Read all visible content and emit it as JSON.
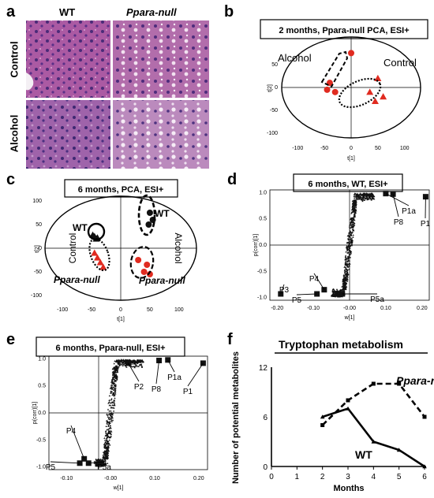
{
  "figure": {
    "panels": {
      "a": {
        "label": "a",
        "col_labels": [
          "WT",
          "Ppara-null"
        ],
        "row_labels": [
          "Control",
          "Alcohol"
        ],
        "images": [
          {
            "row": "Control",
            "col": "WT",
            "tint": "#a9549f"
          },
          {
            "row": "Control",
            "col": "Ppara-null",
            "tint": "#b06aa8"
          },
          {
            "row": "Alcohol",
            "col": "WT",
            "tint": "#9a5fa8"
          },
          {
            "row": "Alcohol",
            "col": "Ppara-null",
            "tint": "#b885b8"
          }
        ]
      },
      "b": {
        "label": "b",
        "title": "2 months, Ppara-null PCA, ESI+",
        "xlabel": "t[1]",
        "ylabel": "t[2]",
        "group_labels": [
          "Alcohol",
          "Control"
        ],
        "x_ticks": [
          "-100",
          "-50",
          "0",
          "50",
          "100"
        ],
        "y_ticks": [
          "50",
          "0",
          "-50",
          "-100"
        ]
      },
      "c": {
        "label": "c",
        "title": "6 months, PCA, ESI+",
        "xlabel": "t[1]",
        "ylabel": "t[2]",
        "group_labels": [
          "WT",
          "WT",
          "Control",
          "Alcohol",
          "Ppara-null",
          "Ppara-null"
        ],
        "x_ticks": [
          "-100",
          "-50",
          "0",
          "50",
          "100"
        ],
        "y_ticks": [
          "100",
          "50",
          "0",
          "-50",
          "-100"
        ]
      },
      "d": {
        "label": "d",
        "title": "6 months, WT, ESI+",
        "xlabel": "w[1]",
        "ylabel": "p(corr)[1]",
        "x_ticks": [
          "-0.20",
          "-0.10",
          "-0.00",
          "0.10",
          "0.20"
        ],
        "y_ticks": [
          "1.0",
          "0.5",
          "0.0",
          "-0.5",
          "-1.0"
        ],
        "marker_labels": [
          "P1a",
          "P8",
          "P1",
          "P4",
          "P3",
          "P5",
          "P5a"
        ]
      },
      "e": {
        "label": "e",
        "title": "6 months, Ppara-null, ESI+",
        "xlabel": "w[1]",
        "ylabel": "p(corr)[1]",
        "x_ticks": [
          "-0.10",
          "-0.00",
          "0.10",
          "0.20"
        ],
        "y_ticks": [
          "1.0",
          "0.5",
          "0.0",
          "-0.5",
          "-1.0"
        ],
        "marker_labels": [
          "P2",
          "P8",
          "P1a",
          "P1",
          "P4",
          "P5",
          "P5a"
        ]
      },
      "f": {
        "label": "f",
        "title": "Tryptophan metabolism",
        "xlabel": "Months",
        "ylabel": "Number of potential metabolites",
        "series_labels": [
          "Ppara-null",
          "WT"
        ]
      }
    }
  },
  "chart_data": [
    {
      "panel": "b",
      "type": "scatter",
      "title": "2 months, Ppara-null PCA, ESI+",
      "xlabel": "t[1]",
      "ylabel": "t[2]",
      "xlim": [
        -130,
        130
      ],
      "ylim": [
        -110,
        110
      ],
      "series": [
        {
          "name": "Alcohol",
          "marker": "circle",
          "color": "#e02b20",
          "x": [
            -40,
            -30,
            -45,
            0
          ],
          "y": [
            10,
            -10,
            -5,
            75
          ]
        },
        {
          "name": "Control",
          "marker": "triangle",
          "color": "#e02b20",
          "x": [
            35,
            50,
            45,
            60
          ],
          "y": [
            -10,
            20,
            -30,
            -20
          ]
        }
      ]
    },
    {
      "panel": "c",
      "type": "scatter",
      "title": "6 months, PCA, ESI+",
      "xlabel": "t[1]",
      "ylabel": "t[2]",
      "xlim": [
        -130,
        130
      ],
      "ylim": [
        -110,
        110
      ],
      "series": [
        {
          "name": "WT Control",
          "marker": "triangle",
          "color": "#111111",
          "x": [
            -45,
            -40,
            -48,
            -42
          ],
          "y": [
            25,
            22,
            28,
            20
          ]
        },
        {
          "name": "WT Alcohol",
          "marker": "circle",
          "color": "#111111",
          "x": [
            50,
            55,
            48
          ],
          "y": [
            75,
            60,
            50
          ]
        },
        {
          "name": "Ppara-null Control",
          "marker": "triangle",
          "color": "#e02b20",
          "x": [
            -45,
            -40,
            -35,
            -30
          ],
          "y": [
            -10,
            -20,
            -30,
            -40
          ]
        },
        {
          "name": "Ppara-null Alcohol",
          "marker": "circle",
          "color": "#e02b20",
          "x": [
            30,
            45,
            40,
            50
          ],
          "y": [
            -25,
            -35,
            -50,
            -55
          ]
        }
      ]
    },
    {
      "panel": "d",
      "type": "scatter",
      "title": "6 months, WT, ESI+",
      "xlabel": "w[1]",
      "ylabel": "p(corr)[1]",
      "xlim": [
        -0.22,
        0.22
      ],
      "ylim": [
        -1.05,
        1.05
      ],
      "series": [
        {
          "name": "highlighted",
          "marker": "square",
          "color": "#111111",
          "labels": [
            "P1a",
            "P8",
            "P1",
            "P4",
            "P3",
            "P5",
            "P5a"
          ],
          "x": [
            0.1,
            0.12,
            0.21,
            -0.07,
            -0.19,
            -0.09,
            -0.02
          ],
          "y": [
            0.98,
            0.97,
            0.92,
            -0.85,
            -0.93,
            -0.93,
            -0.93
          ]
        }
      ]
    },
    {
      "panel": "e",
      "type": "scatter",
      "title": "6 months, Ppara-null, ESI+",
      "xlabel": "w[1]",
      "ylabel": "p(corr)[1]",
      "xlim": [
        -0.14,
        0.22
      ],
      "ylim": [
        -1.05,
        1.05
      ],
      "series": [
        {
          "name": "highlighted",
          "marker": "square",
          "color": "#111111",
          "labels": [
            "P2",
            "P8",
            "P1a",
            "P1",
            "P4",
            "P5",
            "P5a"
          ],
          "x": [
            0.04,
            0.11,
            0.13,
            0.21,
            -0.06,
            -0.07,
            -0.05
          ],
          "y": [
            0.92,
            0.97,
            0.98,
            0.92,
            -0.85,
            -0.93,
            -0.93
          ]
        }
      ]
    },
    {
      "panel": "f",
      "type": "line",
      "title": "Tryptophan metabolism",
      "xlabel": "Months",
      "ylabel": "Number of potential metabolites",
      "x": [
        0,
        1,
        2,
        3,
        4,
        5,
        6
      ],
      "x_ticks": [
        0,
        1,
        2,
        3,
        4,
        5,
        6
      ],
      "y_ticks": [
        0,
        6,
        12
      ],
      "xlim": [
        0,
        6
      ],
      "ylim": [
        0,
        12
      ],
      "series": [
        {
          "name": "Ppara-null",
          "style": "dashed",
          "x": [
            2,
            3,
            4,
            5,
            6
          ],
          "y": [
            5,
            8,
            10,
            10,
            6
          ]
        },
        {
          "name": "WT",
          "style": "solid",
          "x": [
            2,
            3,
            4,
            5,
            6
          ],
          "y": [
            6,
            7,
            3,
            2,
            0
          ]
        }
      ]
    }
  ]
}
